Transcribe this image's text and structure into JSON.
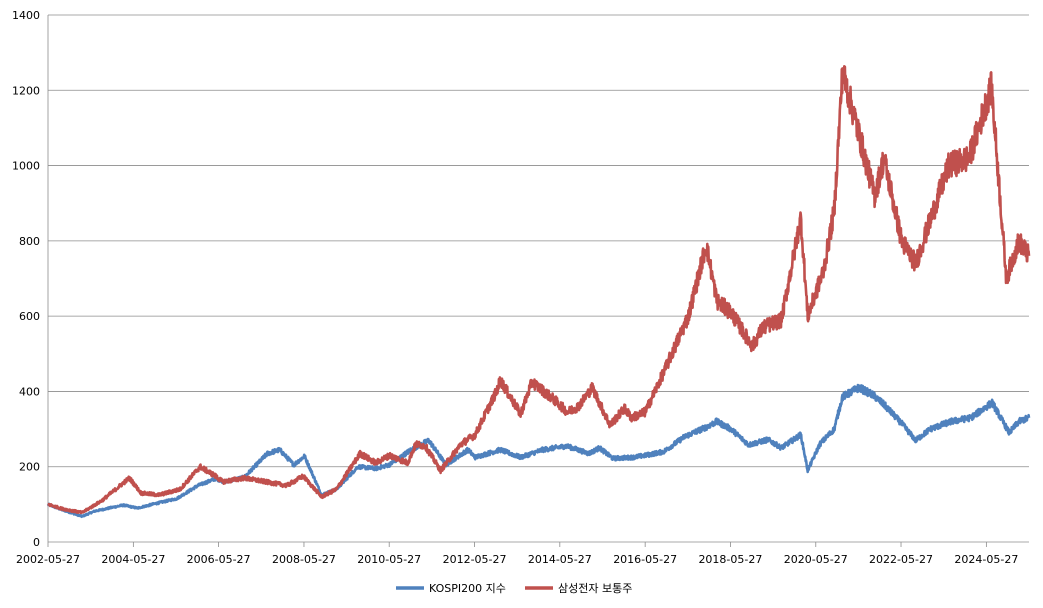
{
  "chart_data": {
    "type": "line",
    "title": "",
    "xlabel": "",
    "ylabel": "",
    "ylim": [
      0,
      1400
    ],
    "yticks": [
      0,
      200,
      400,
      600,
      800,
      1000,
      1200,
      1400
    ],
    "xlim": [
      "2002-05-27",
      "2025-05-27"
    ],
    "xtick_labels": [
      "2002-05-27",
      "2004-05-27",
      "2006-05-27",
      "2008-05-27",
      "2010-05-27",
      "2012-05-27",
      "2014-05-27",
      "2016-05-27",
      "2018-05-27",
      "2020-05-27",
      "2022-05-27",
      "2024-05-27"
    ],
    "grid": "horizontal",
    "legend_position": "bottom",
    "series": [
      {
        "name": "KOSPI200 지수",
        "color": "#4F81BD",
        "points": [
          [
            "2002-05-27",
            100
          ],
          [
            "2002-09-01",
            88
          ],
          [
            "2003-03-15",
            68
          ],
          [
            "2003-07-01",
            82
          ],
          [
            "2004-03-01",
            98
          ],
          [
            "2004-07-01",
            90
          ],
          [
            "2004-12-01",
            102
          ],
          [
            "2005-06-01",
            115
          ],
          [
            "2005-12-01",
            150
          ],
          [
            "2006-05-01",
            168
          ],
          [
            "2006-07-15",
            160
          ],
          [
            "2007-01-01",
            172
          ],
          [
            "2007-07-20",
            235
          ],
          [
            "2007-11-01",
            245
          ],
          [
            "2008-03-01",
            205
          ],
          [
            "2008-06-01",
            228
          ],
          [
            "2008-10-25",
            125
          ],
          [
            "2009-03-01",
            140
          ],
          [
            "2009-09-01",
            200
          ],
          [
            "2010-02-01",
            195
          ],
          [
            "2010-05-27",
            205
          ],
          [
            "2010-12-01",
            245
          ],
          [
            "2011-05-01",
            270
          ],
          [
            "2011-09-25",
            205
          ],
          [
            "2012-04-01",
            245
          ],
          [
            "2012-06-01",
            225
          ],
          [
            "2013-01-01",
            245
          ],
          [
            "2013-06-25",
            225
          ],
          [
            "2014-01-01",
            245
          ],
          [
            "2014-07-25",
            255
          ],
          [
            "2015-02-01",
            235
          ],
          [
            "2015-05-01",
            250
          ],
          [
            "2015-08-25",
            222
          ],
          [
            "2016-02-15",
            225
          ],
          [
            "2016-05-27",
            230
          ],
          [
            "2016-11-01",
            240
          ],
          [
            "2017-05-01",
            280
          ],
          [
            "2017-11-01",
            305
          ],
          [
            "2018-01-29",
            320
          ],
          [
            "2018-06-01",
            300
          ],
          [
            "2018-10-30",
            258
          ],
          [
            "2019-04-15",
            272
          ],
          [
            "2019-08-06",
            250
          ],
          [
            "2020-01-20",
            285
          ],
          [
            "2020-03-19",
            190
          ],
          [
            "2020-07-01",
            260
          ],
          [
            "2020-11-01",
            300
          ],
          [
            "2021-01-10",
            385
          ],
          [
            "2021-06-01",
            410
          ],
          [
            "2021-10-01",
            390
          ],
          [
            "2022-01-01",
            365
          ],
          [
            "2022-06-01",
            315
          ],
          [
            "2022-09-30",
            270
          ],
          [
            "2023-02-01",
            300
          ],
          [
            "2023-08-01",
            320
          ],
          [
            "2024-01-15",
            330
          ],
          [
            "2024-07-15",
            370
          ],
          [
            "2024-12-09",
            290
          ],
          [
            "2025-03-01",
            320
          ],
          [
            "2025-05-27",
            330
          ]
        ]
      },
      {
        "name": "삼성전자 보통주",
        "color": "#C0504D",
        "points": [
          [
            "2002-05-27",
            100
          ],
          [
            "2002-10-01",
            88
          ],
          [
            "2003-03-15",
            78
          ],
          [
            "2003-09-01",
            110
          ],
          [
            "2004-04-23",
            170
          ],
          [
            "2004-08-01",
            130
          ],
          [
            "2005-01-01",
            125
          ],
          [
            "2005-07-01",
            140
          ],
          [
            "2005-12-20",
            200
          ],
          [
            "2006-05-01",
            175
          ],
          [
            "2006-07-01",
            160
          ],
          [
            "2007-01-01",
            170
          ],
          [
            "2007-07-01",
            160
          ],
          [
            "2008-01-01",
            150
          ],
          [
            "2008-05-20",
            175
          ],
          [
            "2008-10-25",
            120
          ],
          [
            "2009-03-01",
            140
          ],
          [
            "2009-09-20",
            235
          ],
          [
            "2010-02-01",
            210
          ],
          [
            "2010-06-01",
            230
          ],
          [
            "2010-11-01",
            210
          ],
          [
            "2011-01-10",
            260
          ],
          [
            "2011-04-01",
            255
          ],
          [
            "2011-08-10",
            190
          ],
          [
            "2012-02-01",
            260
          ],
          [
            "2012-06-01",
            285
          ],
          [
            "2012-12-01",
            400
          ],
          [
            "2013-01-02",
            430
          ],
          [
            "2013-06-25",
            340
          ],
          [
            "2013-10-01",
            425
          ],
          [
            "2014-04-01",
            380
          ],
          [
            "2014-08-01",
            345
          ],
          [
            "2014-11-01",
            360
          ],
          [
            "2015-03-01",
            410
          ],
          [
            "2015-08-01",
            310
          ],
          [
            "2015-12-01",
            355
          ],
          [
            "2016-02-01",
            330
          ],
          [
            "2016-05-27",
            345
          ],
          [
            "2016-11-01",
            450
          ],
          [
            "2017-06-01",
            600
          ],
          [
            "2017-11-01",
            790
          ],
          [
            "2018-02-01",
            640
          ],
          [
            "2018-06-01",
            610
          ],
          [
            "2018-12-01",
            520
          ],
          [
            "2019-03-01",
            570
          ],
          [
            "2019-08-06",
            590
          ],
          [
            "2020-01-20",
            860
          ],
          [
            "2020-03-19",
            600
          ],
          [
            "2020-08-01",
            720
          ],
          [
            "2020-11-01",
            880
          ],
          [
            "2021-01-11",
            1250
          ],
          [
            "2021-05-01",
            1120
          ],
          [
            "2021-10-13",
            920
          ],
          [
            "2022-01-01",
            1020
          ],
          [
            "2022-06-01",
            800
          ],
          [
            "2022-09-30",
            740
          ],
          [
            "2023-03-01",
            880
          ],
          [
            "2023-07-10",
            1000
          ],
          [
            "2024-01-01",
            1020
          ],
          [
            "2024-07-10",
            1210
          ],
          [
            "2024-11-14",
            700
          ],
          [
            "2025-03-01",
            800
          ],
          [
            "2025-05-27",
            760
          ]
        ]
      }
    ]
  }
}
